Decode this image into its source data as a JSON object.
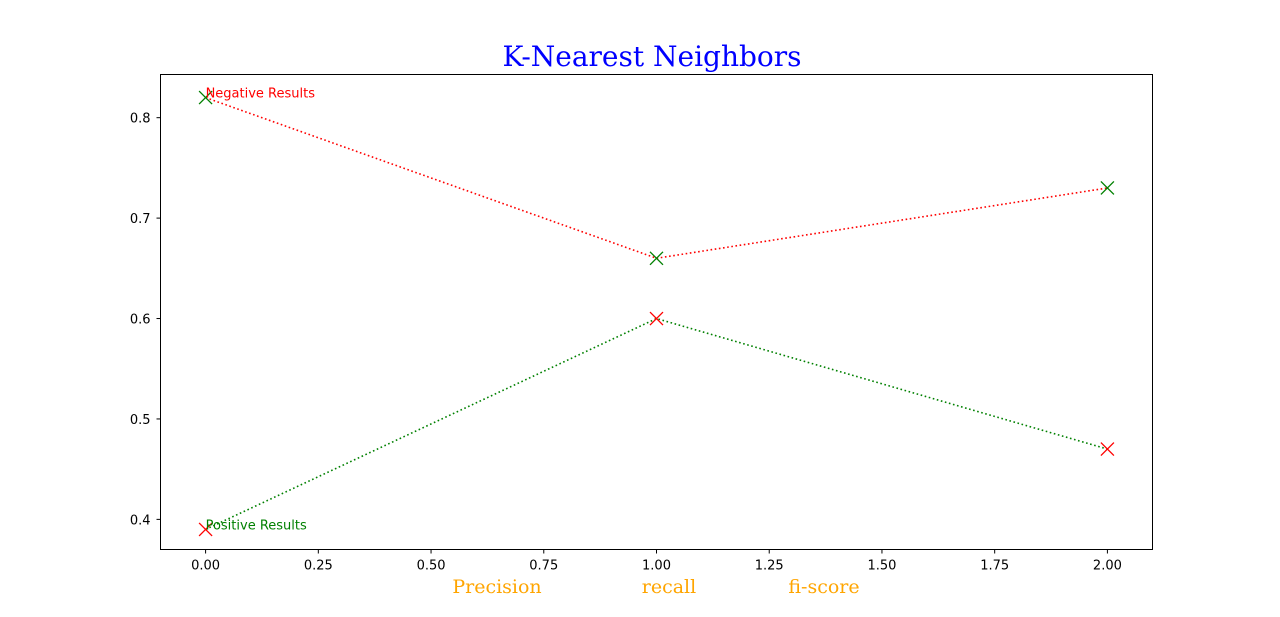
{
  "chart_data": {
    "type": "line",
    "title": "K-Nearest Neighbors",
    "title_color": "#0000ff",
    "xlabel_parts": [
      "Precision",
      "recall",
      "fi-score"
    ],
    "xlabel_color": "#ffa500",
    "ylabel": "",
    "xlim": [
      -0.1,
      2.1
    ],
    "ylim": [
      0.37,
      0.843
    ],
    "xticks": [
      0.0,
      0.25,
      0.5,
      0.75,
      1.0,
      1.25,
      1.5,
      1.75,
      2.0
    ],
    "xtick_labels": [
      "0.00",
      "0.25",
      "0.50",
      "0.75",
      "1.00",
      "1.25",
      "1.50",
      "1.75",
      "2.00"
    ],
    "yticks": [
      0.4,
      0.5,
      0.6,
      0.7,
      0.8
    ],
    "ytick_labels": [
      "0.4",
      "0.5",
      "0.6",
      "0.7",
      "0.8"
    ],
    "grid": false,
    "x": [
      0,
      1,
      2
    ],
    "series": [
      {
        "line_color": "#ff0000",
        "marker_color": "#008000",
        "values": [
          0.82,
          0.66,
          0.73
        ]
      },
      {
        "line_color": "#008000",
        "marker_color": "#ff0000",
        "values": [
          0.39,
          0.6,
          0.47
        ]
      }
    ],
    "annotations": [
      {
        "text": "Negative Results",
        "x": 0,
        "y": 0.82,
        "color": "#ff0000"
      },
      {
        "text": "Positive Results",
        "x": 0,
        "y": 0.39,
        "color": "#008000"
      }
    ]
  }
}
